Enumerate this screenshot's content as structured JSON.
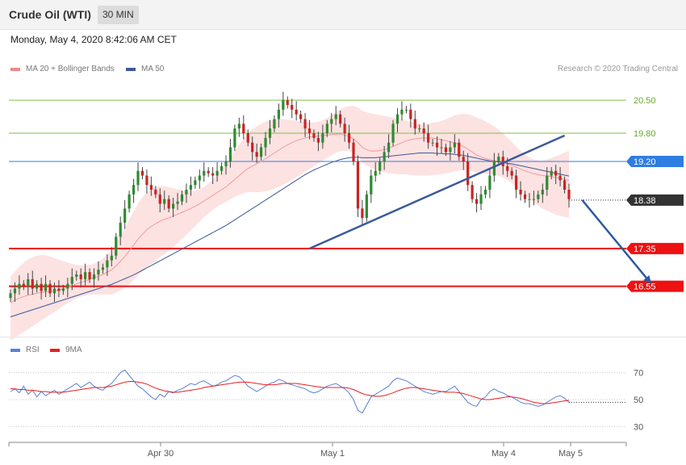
{
  "header": {
    "title": "Crude Oil (WTI)",
    "interval": "30 MIN"
  },
  "datetime": "Monday, May 4, 2020 8:42:06 AM CET",
  "legend": [
    {
      "label": "MA 20 + Bollinger Bands",
      "color": "#f08a8a"
    },
    {
      "label": "MA 50",
      "color": "#3c5a9a"
    }
  ],
  "credit": "Research © 2020 Trading Central",
  "rsi_legend": [
    {
      "label": "RSI",
      "color": "#5b7fd6"
    },
    {
      "label": "9MA",
      "color": "#e82020"
    }
  ],
  "colors": {
    "up": "#2e8b2e",
    "down": "#cc2222",
    "support": "#ee1111",
    "resistance": "#7fbf3f",
    "ma50": "#3c5a9a",
    "pivot": "#2f7de1",
    "last": "#333333",
    "bands": "#fde2e2"
  },
  "chart_data": [
    {
      "type": "candlestick",
      "ylim": [
        15.6,
        21.0
      ],
      "x_ticks": [
        "Apr 30",
        "May 1",
        "May 4",
        "May 5"
      ],
      "levels": [
        {
          "label": "20.50",
          "value": 20.5,
          "kind": "resistance"
        },
        {
          "label": "19.80",
          "value": 19.8,
          "kind": "resistance"
        },
        {
          "label": "19.20",
          "value": 19.2,
          "kind": "pivot"
        },
        {
          "label": "18.38",
          "value": 18.38,
          "kind": "last"
        },
        {
          "label": "17.35",
          "value": 17.35,
          "kind": "support"
        },
        {
          "label": "16.55",
          "value": 16.55,
          "kind": "support"
        }
      ],
      "close": [
        16.4,
        16.5,
        16.6,
        16.55,
        16.7,
        16.5,
        16.6,
        16.45,
        16.6,
        16.4,
        16.5,
        16.45,
        16.5,
        16.6,
        16.75,
        16.8,
        16.7,
        16.85,
        16.7,
        16.8,
        16.9,
        16.95,
        17.1,
        17.2,
        17.6,
        17.9,
        18.2,
        18.5,
        18.7,
        19.0,
        18.9,
        18.7,
        18.6,
        18.5,
        18.3,
        18.4,
        18.2,
        18.3,
        18.35,
        18.5,
        18.6,
        18.7,
        18.8,
        18.9,
        19.0,
        18.95,
        18.9,
        19.0,
        19.1,
        19.2,
        19.5,
        19.9,
        20.0,
        19.8,
        19.6,
        19.4,
        19.3,
        19.5,
        19.7,
        19.9,
        20.1,
        20.3,
        20.5,
        20.4,
        20.3,
        20.2,
        20.1,
        19.9,
        19.8,
        19.7,
        19.6,
        19.8,
        20.0,
        20.1,
        20.2,
        20.0,
        19.8,
        19.6,
        19.2,
        18.2,
        18.0,
        18.5,
        18.9,
        19.0,
        19.2,
        19.4,
        19.6,
        20.0,
        20.2,
        20.3,
        20.3,
        20.1,
        19.9,
        19.9,
        19.8,
        19.6,
        19.6,
        19.5,
        19.5,
        19.4,
        19.5,
        19.6,
        19.3,
        19.2,
        18.7,
        18.4,
        18.3,
        18.5,
        18.6,
        18.9,
        19.2,
        19.3,
        19.1,
        19.0,
        18.9,
        18.6,
        18.5,
        18.4,
        18.4,
        18.4,
        18.5,
        18.6,
        18.9,
        19.0,
        18.9,
        18.8,
        18.6,
        18.4
      ],
      "ma20": [
        16.2,
        16.25,
        16.3,
        16.33,
        16.36,
        16.38,
        16.4,
        16.42,
        16.43,
        16.44,
        16.45,
        16.47,
        16.5,
        16.53,
        16.56,
        16.6,
        16.63,
        16.66,
        16.7,
        16.73,
        16.76,
        16.8,
        16.85,
        16.9,
        16.98,
        17.08,
        17.18,
        17.3,
        17.42,
        17.55,
        17.65,
        17.75,
        17.82,
        17.88,
        17.93,
        17.97,
        18.0,
        18.04,
        18.08,
        18.12,
        18.16,
        18.2,
        18.25,
        18.3,
        18.36,
        18.42,
        18.48,
        18.54,
        18.6,
        18.66,
        18.74,
        18.82,
        18.9,
        18.98,
        19.05,
        19.1,
        19.15,
        19.2,
        19.26,
        19.32,
        19.38,
        19.44,
        19.5,
        19.55,
        19.6,
        19.64,
        19.67,
        19.7,
        19.72,
        19.73,
        19.74,
        19.75,
        19.76,
        19.77,
        19.78,
        19.78,
        19.76,
        19.73,
        19.68,
        19.6,
        19.5,
        19.45,
        19.42,
        19.42,
        19.43,
        19.45,
        19.48,
        19.52,
        19.56,
        19.6,
        19.64,
        19.66,
        19.68,
        19.69,
        19.7,
        19.7,
        19.7,
        19.68,
        19.66,
        19.64,
        19.62,
        19.6,
        19.56,
        19.52,
        19.46,
        19.4,
        19.34,
        19.3,
        19.26,
        19.24,
        19.22,
        19.2,
        19.18,
        19.15,
        19.12,
        19.08,
        19.04,
        19.0,
        18.97,
        18.94,
        18.92,
        18.9,
        18.89,
        18.88,
        18.86,
        18.84,
        18.82,
        18.8
      ],
      "band_width": 0.55,
      "ma50": [
        15.9,
        15.93,
        15.96,
        15.99,
        16.02,
        16.05,
        16.08,
        16.11,
        16.14,
        16.17,
        16.2,
        16.23,
        16.26,
        16.29,
        16.32,
        16.35,
        16.38,
        16.41,
        16.44,
        16.47,
        16.5,
        16.53,
        16.56,
        16.59,
        16.63,
        16.67,
        16.71,
        16.75,
        16.79,
        16.84,
        16.89,
        16.94,
        16.99,
        17.04,
        17.09,
        17.14,
        17.19,
        17.24,
        17.29,
        17.34,
        17.39,
        17.44,
        17.49,
        17.54,
        17.59,
        17.64,
        17.69,
        17.74,
        17.79,
        17.84,
        17.9,
        17.96,
        18.02,
        18.08,
        18.14,
        18.2,
        18.26,
        18.32,
        18.38,
        18.44,
        18.5,
        18.56,
        18.62,
        18.68,
        18.74,
        18.8,
        18.86,
        18.92,
        18.97,
        19.02,
        19.06,
        19.1,
        19.14,
        19.18,
        19.21,
        19.24,
        19.26,
        19.28,
        19.29,
        19.29,
        19.28,
        19.28,
        19.28,
        19.28,
        19.29,
        19.3,
        19.31,
        19.32,
        19.33,
        19.34,
        19.35,
        19.36,
        19.37,
        19.38,
        19.38,
        19.38,
        19.38,
        19.37,
        19.37,
        19.36,
        19.36,
        19.35,
        19.34,
        19.33,
        19.31,
        19.29,
        19.27,
        19.25,
        19.23,
        19.21,
        19.2,
        19.19,
        19.18,
        19.16,
        19.15,
        19.13,
        19.11,
        19.09,
        19.07,
        19.05,
        19.03,
        19.01,
        18.99,
        18.97,
        18.95,
        18.93,
        18.91,
        18.89
      ],
      "trendline": {
        "from": [
          17.35,
          68
        ],
        "to": [
          19.75,
          126
        ]
      },
      "projection": {
        "from": [
          18.38,
          130
        ],
        "to": [
          16.6,
          145
        ]
      }
    },
    {
      "type": "line",
      "name": "RSI",
      "ylim": [
        20,
        80
      ],
      "y_ticks": [
        70,
        50,
        30
      ],
      "rsi": [
        56,
        58,
        55,
        60,
        54,
        57,
        52,
        56,
        53,
        55,
        57,
        54,
        56,
        58,
        60,
        62,
        59,
        61,
        63,
        60,
        58,
        57,
        60,
        62,
        66,
        70,
        72,
        68,
        64,
        60,
        58,
        55,
        52,
        50,
        54,
        52,
        56,
        55,
        57,
        58,
        60,
        62,
        61,
        63,
        64,
        62,
        60,
        61,
        63,
        64,
        66,
        68,
        67,
        64,
        60,
        58,
        56,
        58,
        60,
        62,
        63,
        65,
        64,
        62,
        61,
        60,
        59,
        58,
        56,
        55,
        56,
        58,
        60,
        61,
        62,
        60,
        58,
        55,
        50,
        42,
        40,
        46,
        52,
        54,
        56,
        58,
        60,
        64,
        66,
        65,
        64,
        62,
        60,
        58,
        56,
        55,
        54,
        55,
        56,
        56,
        58,
        60,
        56,
        52,
        48,
        46,
        45,
        50,
        52,
        56,
        58,
        56,
        55,
        53,
        52,
        50,
        48,
        47,
        47,
        46,
        45,
        46,
        48,
        50,
        52,
        53,
        51,
        48
      ],
      "ma9": [
        58,
        58,
        57.5,
        57.5,
        57,
        57,
        56.5,
        56,
        56,
        55.5,
        55.5,
        55.5,
        55.5,
        56,
        56.5,
        57,
        57.5,
        58,
        58.5,
        59,
        59,
        59,
        59.5,
        60,
        61,
        62,
        63,
        63.5,
        63.5,
        63,
        62.5,
        61.5,
        60,
        58.5,
        57.5,
        56.5,
        56,
        55.5,
        55.5,
        56,
        56.5,
        57,
        57.5,
        58,
        59,
        59.5,
        60,
        60.5,
        61,
        61.5,
        62,
        62.5,
        63,
        63,
        63,
        62.5,
        62,
        61.5,
        61,
        61,
        61,
        61.5,
        62,
        62,
        62,
        62,
        61.5,
        61,
        60.5,
        60,
        59.5,
        59,
        59,
        59,
        59,
        59,
        59,
        58.5,
        57.5,
        56,
        54.5,
        53.5,
        53,
        52.5,
        52.5,
        53,
        54,
        55,
        56.5,
        57.5,
        58.5,
        59,
        59,
        58.5,
        58,
        57.5,
        57,
        56.5,
        56,
        55.5,
        55.5,
        55.5,
        55,
        54.5,
        53.5,
        52.5,
        51.5,
        50.5,
        50,
        50,
        50.5,
        51,
        51.5,
        52,
        52,
        51.5,
        51,
        50,
        49,
        48,
        47.5,
        47,
        47,
        47.5,
        48,
        48.5,
        49,
        49.5
      ]
    }
  ]
}
